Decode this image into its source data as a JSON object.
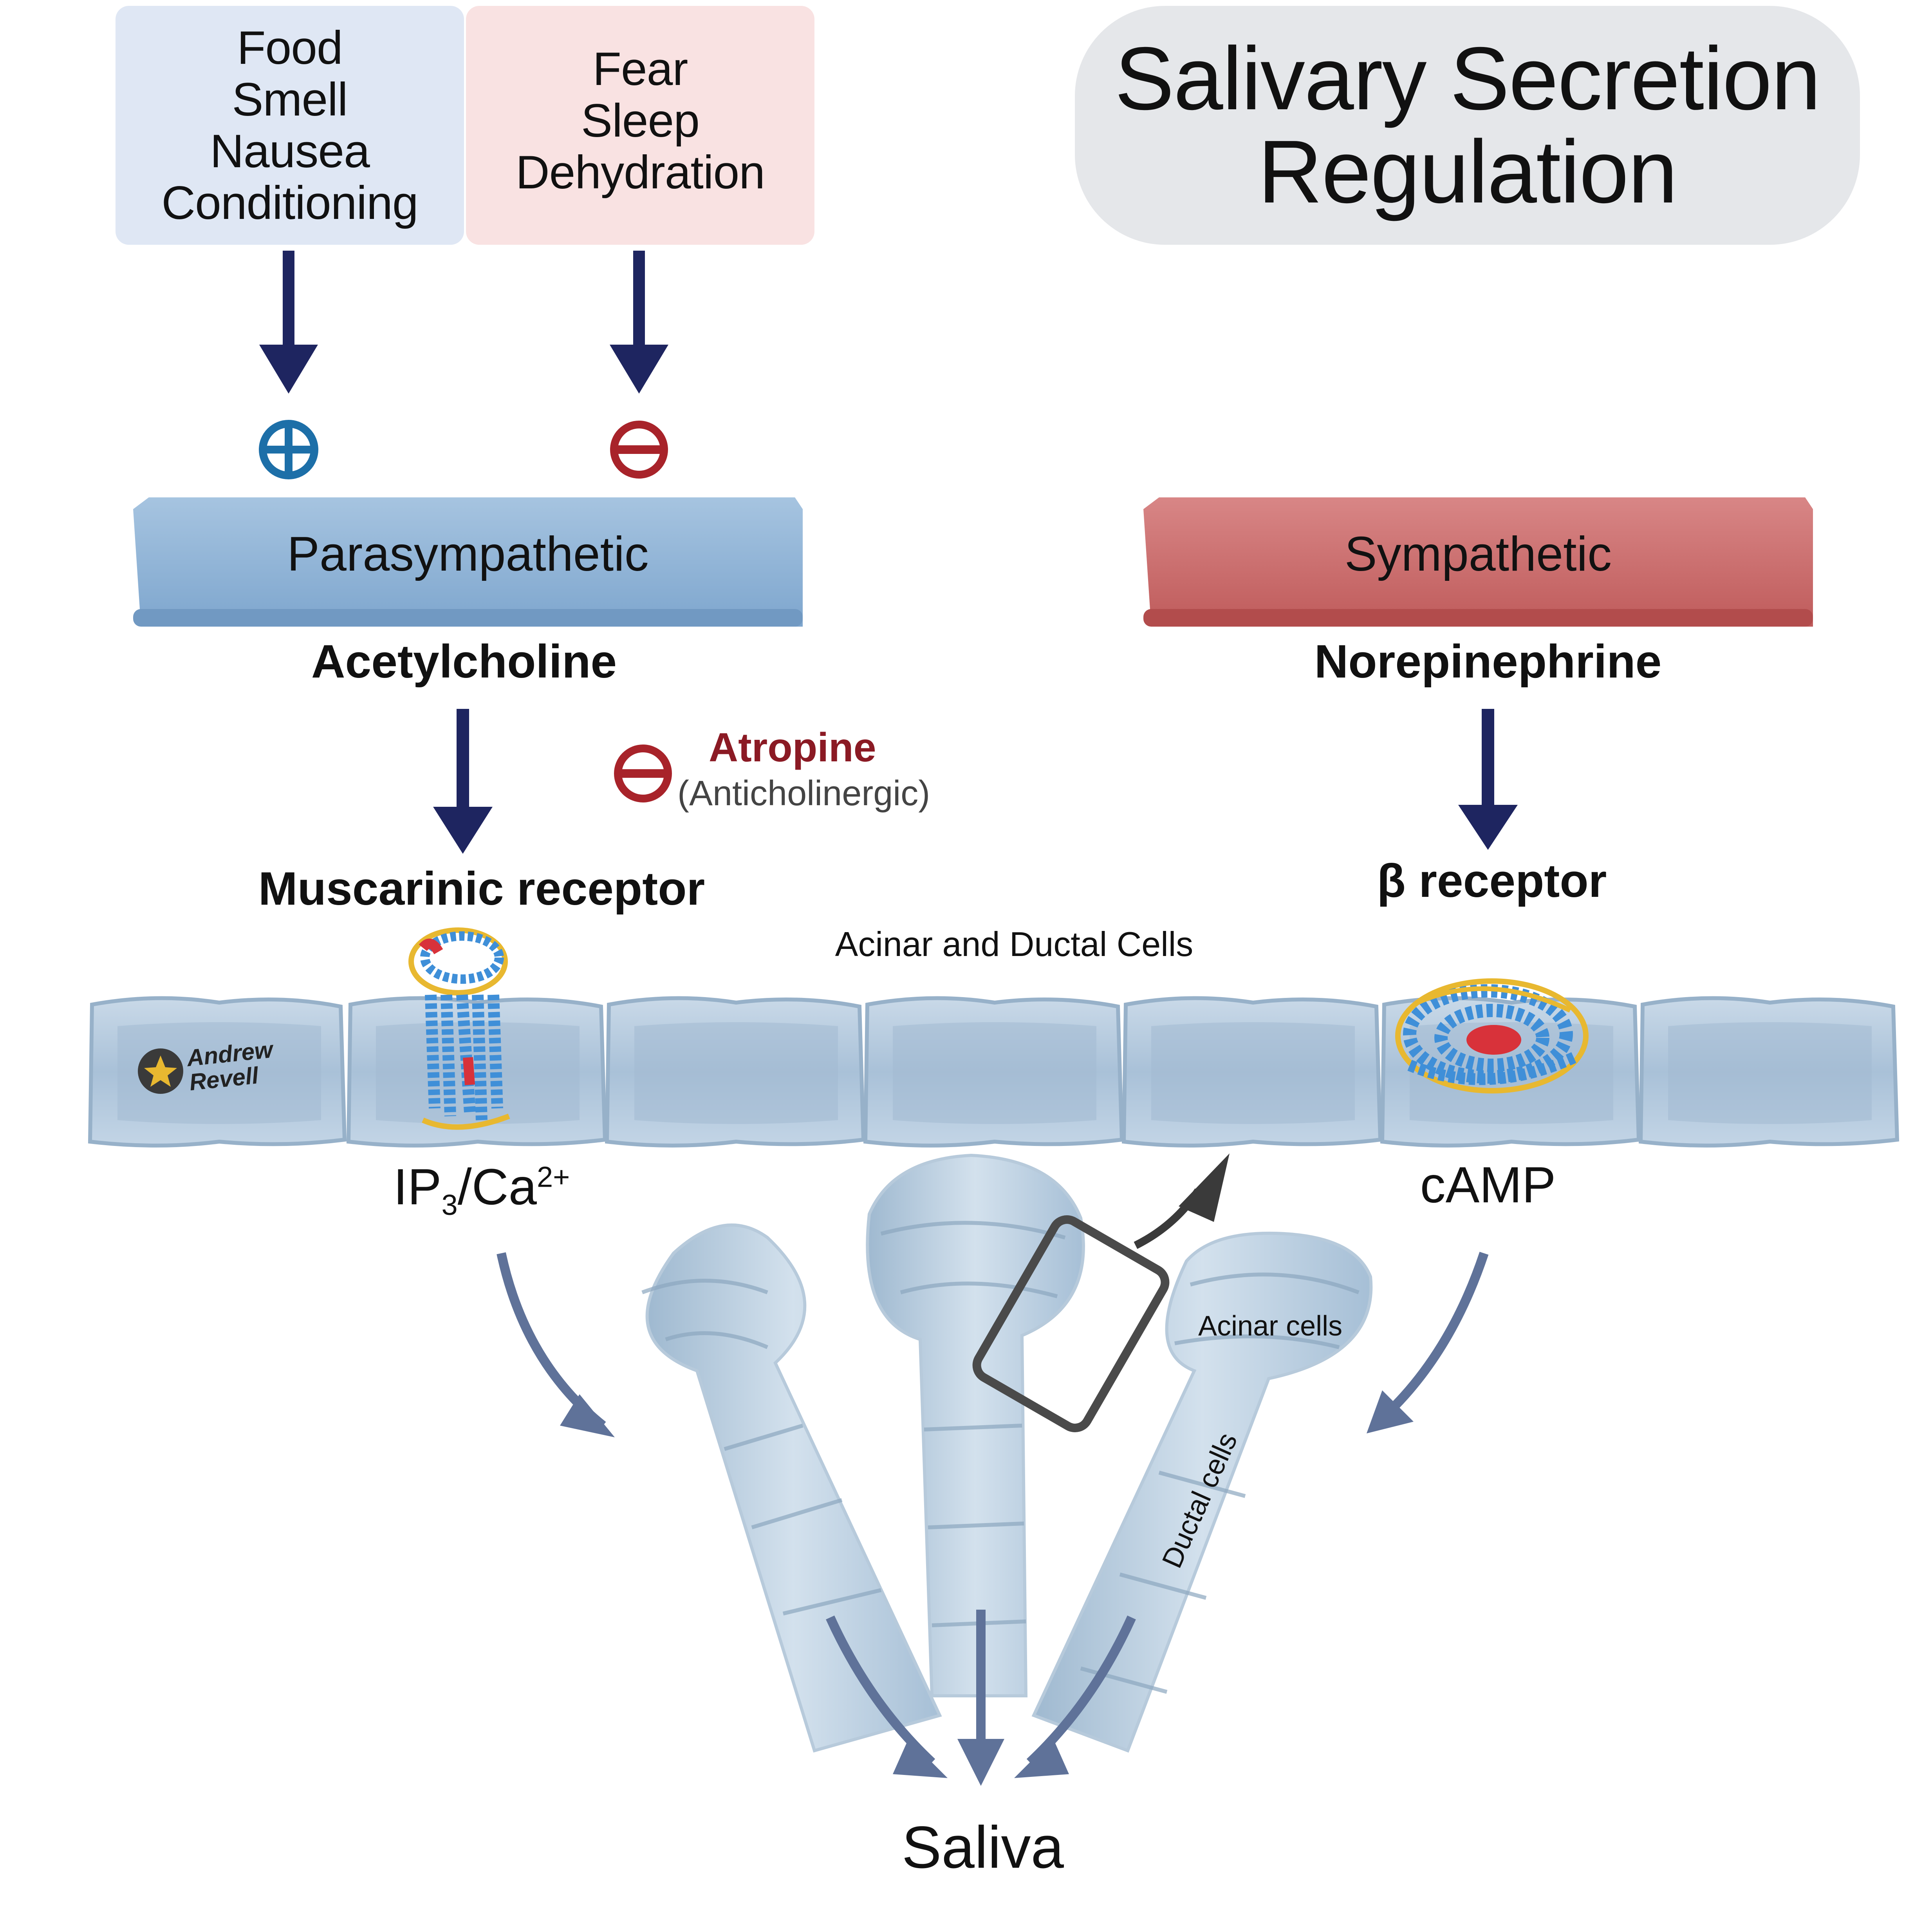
{
  "title": {
    "line1": "Salivary Secretion",
    "line2": "Regulation"
  },
  "stimulators": {
    "items": [
      "Food",
      "Smell",
      "Nausea",
      "Conditioning"
    ],
    "sign": "+",
    "color": "#1d6fa8"
  },
  "inhibitors": {
    "items": [
      "Fear",
      "Sleep",
      "Dehydration"
    ],
    "sign": "−",
    "color": "#a8232a"
  },
  "parasympathetic": {
    "label": "Parasympathetic",
    "transmitter": "Acetylcholine",
    "receptor": "Muscarinic receptor",
    "messenger": {
      "main": "IP",
      "sub": "3",
      "mid": "/Ca",
      "sup": "2+"
    }
  },
  "sympathetic": {
    "label": "Sympathetic",
    "transmitter": "Norepinephrine",
    "receptor": "β receptor",
    "messenger": "cAMP"
  },
  "atropine": {
    "name": "Atropine",
    "note": "(Anticholinergic)",
    "color": "#8b1a24"
  },
  "membrane_label": "Acinar and Ductal Cells",
  "acinar_label": "Acinar cells",
  "ductal_label": "Ductal cells",
  "output": "Saliva",
  "watermark": {
    "line1": "Andrew",
    "line2": "Revell"
  },
  "colors": {
    "arrow": "#1e2560",
    "flow_arrow": "#5f7299",
    "para_fill": "#93b5d6",
    "symp_fill": "#c96b6b",
    "stim_box": "#dfe7f4",
    "inhib_box": "#f9e2e2",
    "cell": "#b9cde0",
    "gland": "#c6d7e6"
  }
}
